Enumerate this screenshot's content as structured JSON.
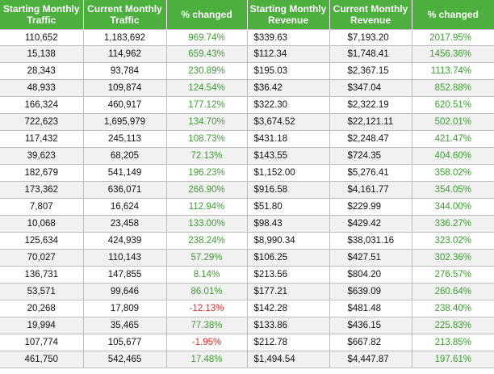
{
  "headers": [
    "Starting Monthly Traffic",
    "Current Monthly Traffic",
    "% changed",
    "Starting Monthly Revenue",
    "Current Monthly Revenue",
    "% changed"
  ],
  "colors": {
    "header_bg": "#4caf3e",
    "positive": "#3f9d33",
    "negative": "#e02b2b"
  },
  "rows": [
    [
      "110,652",
      "1,183,692",
      "969.74%",
      "$339.63",
      "$7,193.20",
      "2017.95%"
    ],
    [
      "15,138",
      "114,962",
      "659.43%",
      "$112.34",
      "$1,748.41",
      "1456.36%"
    ],
    [
      "28,343",
      "93,784",
      "230.89%",
      "$195.03",
      "$2,367.15",
      "1113.74%"
    ],
    [
      "48,933",
      "109,874",
      "124.54%",
      "$36.42",
      "$347.04",
      "852.88%"
    ],
    [
      "166,324",
      "460,917",
      "177.12%",
      "$322.30",
      "$2,322.19",
      "620.51%"
    ],
    [
      "722,623",
      "1,695,979",
      "134.70%",
      "$3,674.52",
      "$22,121.11",
      "502.01%"
    ],
    [
      "117,432",
      "245,113",
      "108.73%",
      "$431.18",
      "$2,248.47",
      "421.47%"
    ],
    [
      "39,623",
      "68,205",
      "72.13%",
      "$143.55",
      "$724.35",
      "404.60%"
    ],
    [
      "182,679",
      "541,149",
      "196.23%",
      "$1,152.00",
      "$5,276.41",
      "358.02%"
    ],
    [
      "173,362",
      "636,071",
      "266.90%",
      "$916.58",
      "$4,161.77",
      "354.05%"
    ],
    [
      "7,807",
      "16,624",
      "112.94%",
      "$51.80",
      "$229.99",
      "344.00%"
    ],
    [
      "10,068",
      "23,458",
      "133.00%",
      "$98.43",
      "$429.42",
      "336.27%"
    ],
    [
      "125,634",
      "424,939",
      "238.24%",
      "$8,990.34",
      "$38,031.16",
      "323.02%"
    ],
    [
      "70,027",
      "110,143",
      "57.29%",
      "$106.25",
      "$427.51",
      "302.36%"
    ],
    [
      "136,731",
      "147,855",
      "8.14%",
      "$213.56",
      "$804.20",
      "276.57%"
    ],
    [
      "53,571",
      "99,646",
      "86.01%",
      "$177.21",
      "$639.09",
      "260.64%"
    ],
    [
      "20,268",
      "17,809",
      "-12.13%",
      "$142.28",
      "$481.48",
      "238.40%"
    ],
    [
      "19,994",
      "35,465",
      "77.38%",
      "$133.86",
      "$436.15",
      "225.83%"
    ],
    [
      "107,774",
      "105,677",
      "-1.95%",
      "$212.78",
      "$667.82",
      "213.85%"
    ],
    [
      "461,750",
      "542,465",
      "17.48%",
      "$1,494.54",
      "$4,447.87",
      "197.61%"
    ]
  ]
}
